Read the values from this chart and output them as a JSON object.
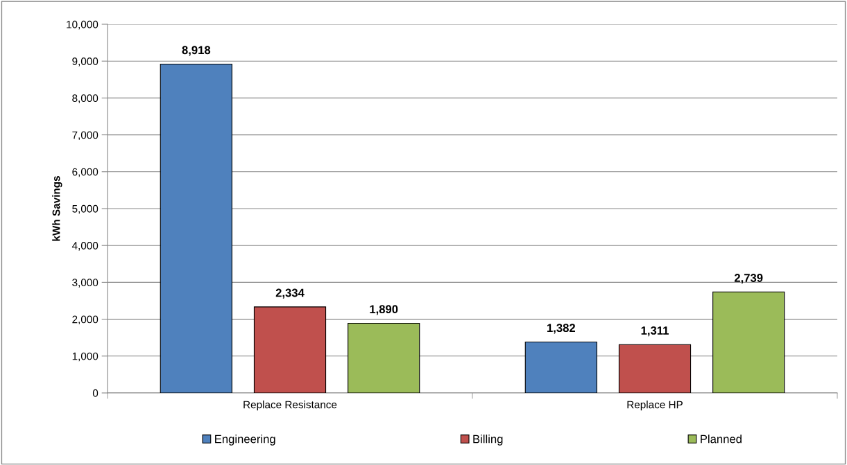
{
  "chart_data": {
    "type": "bar",
    "ylabel": "kWh Savings",
    "categories": [
      "Replace Resistance",
      "Replace HP"
    ],
    "series": [
      {
        "name": "Engineering",
        "color": "#4f81bd",
        "values": [
          8918,
          1382
        ],
        "value_labels": [
          "8,918",
          "1,382"
        ]
      },
      {
        "name": "Billing",
        "color": "#c0504d",
        "values": [
          2334,
          1311
        ],
        "value_labels": [
          "2,334",
          "1,311"
        ]
      },
      {
        "name": "Planned",
        "color": "#9bbb59",
        "values": [
          1890,
          2739
        ],
        "value_labels": [
          "1,890",
          "2,739"
        ]
      }
    ],
    "ylim": [
      0,
      10000
    ],
    "yticks": [
      {
        "value": 0,
        "label": "0"
      },
      {
        "value": 1000,
        "label": "1,000"
      },
      {
        "value": 2000,
        "label": "2,000"
      },
      {
        "value": 3000,
        "label": "3,000"
      },
      {
        "value": 4000,
        "label": "4,000"
      },
      {
        "value": 5000,
        "label": "5,000"
      },
      {
        "value": 6000,
        "label": "6,000"
      },
      {
        "value": 7000,
        "label": "7,000"
      },
      {
        "value": 8000,
        "label": "8,000"
      },
      {
        "value": 9000,
        "label": "9,000"
      },
      {
        "value": 10000,
        "label": "10,000"
      }
    ],
    "grid": "y",
    "legend": "bottom"
  }
}
